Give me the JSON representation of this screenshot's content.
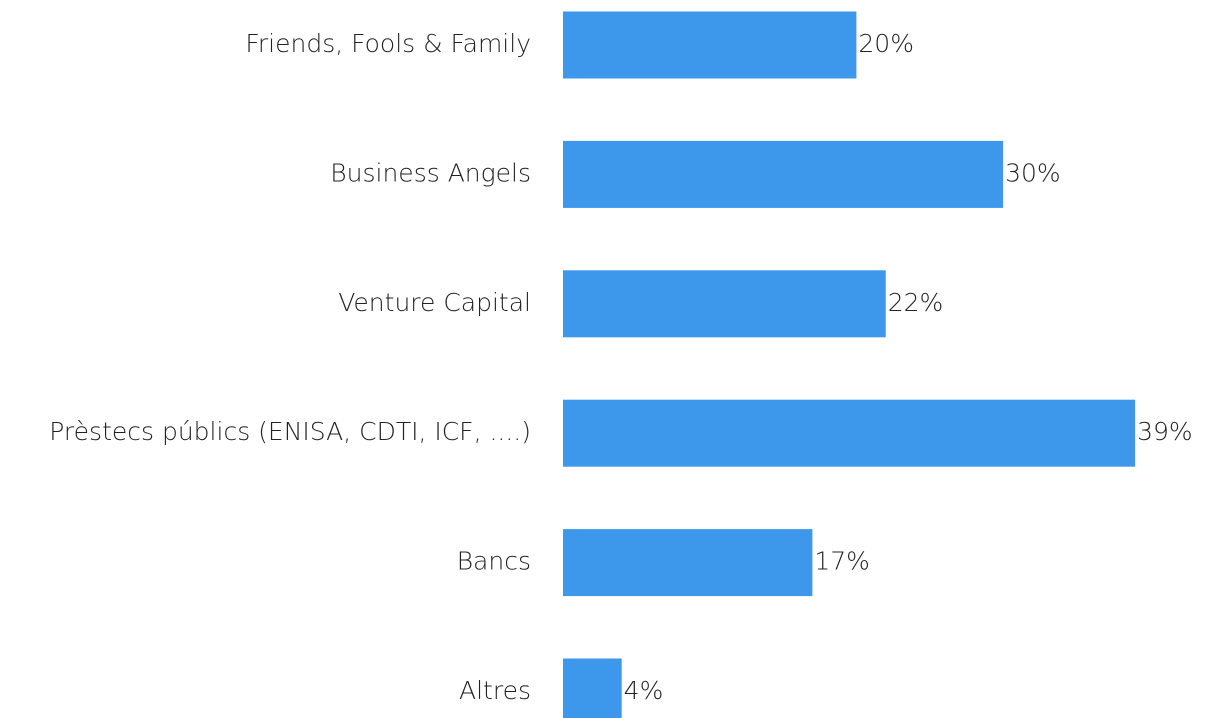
{
  "chart_data": {
    "type": "bar",
    "orientation": "horizontal",
    "categories": [
      "Friends, Fools & Family",
      "Business Angels",
      "Venture Capital",
      "Prèstecs públics (ENISA, CDTI, ICF, ....)",
      "Bancs",
      "Altres"
    ],
    "values": [
      20,
      30,
      22,
      39,
      17,
      4
    ],
    "value_labels": [
      "20%",
      "30%",
      "22%",
      "39%",
      "17%",
      "4%"
    ],
    "color": "#3d98ec"
  }
}
